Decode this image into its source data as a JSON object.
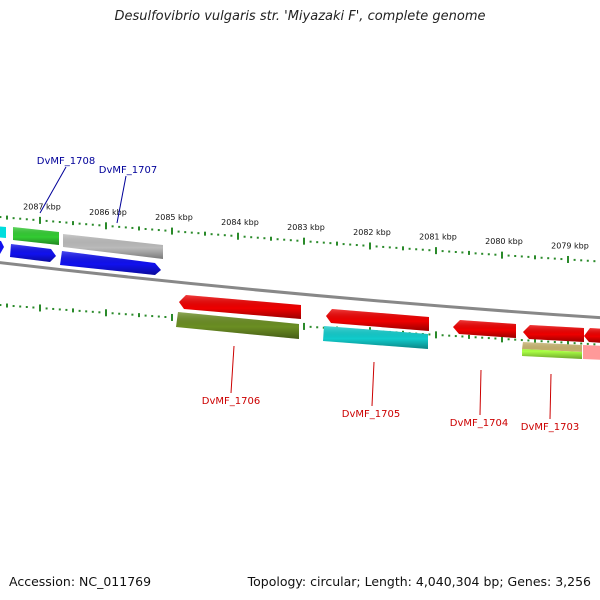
{
  "title": "Desulfovibrio vulgaris str. 'Miyazaki F', complete genome",
  "footer": {
    "accession": "Accession: NC_011769",
    "stats": "Topology: circular; Length: 4,040,304 bp; Genes: 3,256"
  },
  "scale": {
    "unit_label": "kbp",
    "ticks": [
      {
        "pos_kbp": 2087,
        "label": "2087 kbp"
      },
      {
        "pos_kbp": 2086,
        "label": "2086 kbp"
      },
      {
        "pos_kbp": 2085,
        "label": "2085 kbp"
      },
      {
        "pos_kbp": 2084,
        "label": "2084 kbp"
      },
      {
        "pos_kbp": 2083,
        "label": "2083 kbp"
      },
      {
        "pos_kbp": 2082,
        "label": "2082 kbp"
      },
      {
        "pos_kbp": 2081,
        "label": "2081 kbp"
      },
      {
        "pos_kbp": 2080,
        "label": "2080 kbp"
      },
      {
        "pos_kbp": 2079,
        "label": "2079 kbp"
      }
    ]
  },
  "colors": {
    "backbone": "#888888",
    "tick": "#2a8a2a",
    "label_forward": "#000099",
    "label_reverse": "#cc0000"
  },
  "labels": [
    {
      "id": "DvMF_1708",
      "text": "DvMF_1708",
      "strand": "forward"
    },
    {
      "id": "DvMF_1707",
      "text": "DvMF_1707",
      "strand": "forward"
    },
    {
      "id": "DvMF_1706",
      "text": "DvMF_1706",
      "strand": "reverse"
    },
    {
      "id": "DvMF_1705",
      "text": "DvMF_1705",
      "strand": "reverse"
    },
    {
      "id": "DvMF_1704",
      "text": "DvMF_1704",
      "strand": "reverse"
    },
    {
      "id": "DvMF_1703",
      "text": "DvMF_1703",
      "strand": "reverse"
    }
  ],
  "features": [
    {
      "name": "feature-outer-cyan",
      "color": "#00dddd"
    },
    {
      "name": "feature-outer-green",
      "color": "#33cc33"
    },
    {
      "name": "feature-outer-gray",
      "color": "#bbbbbb"
    },
    {
      "name": "feature-gene-1708",
      "color": "#1111ee"
    },
    {
      "name": "feature-gene-1707",
      "color": "#1111ee"
    },
    {
      "name": "feature-gene-1706",
      "color": "#ee0000"
    },
    {
      "name": "feature-gene-1705",
      "color": "#ee0000"
    },
    {
      "name": "feature-gene-1704",
      "color": "#ee0000"
    },
    {
      "name": "feature-gene-1703",
      "color": "#ee0000"
    },
    {
      "name": "feature-gene-edge",
      "color": "#ee0000"
    },
    {
      "name": "feature-inner-olive",
      "color": "#6b8e23"
    },
    {
      "name": "feature-inner-cyan",
      "color": "#11cccc"
    },
    {
      "name": "feature-inner-khaki",
      "color": "#c8b46e"
    },
    {
      "name": "feature-inner-lime",
      "color": "#aaff44"
    },
    {
      "name": "feature-inner-pink",
      "color": "#ff9999"
    }
  ]
}
